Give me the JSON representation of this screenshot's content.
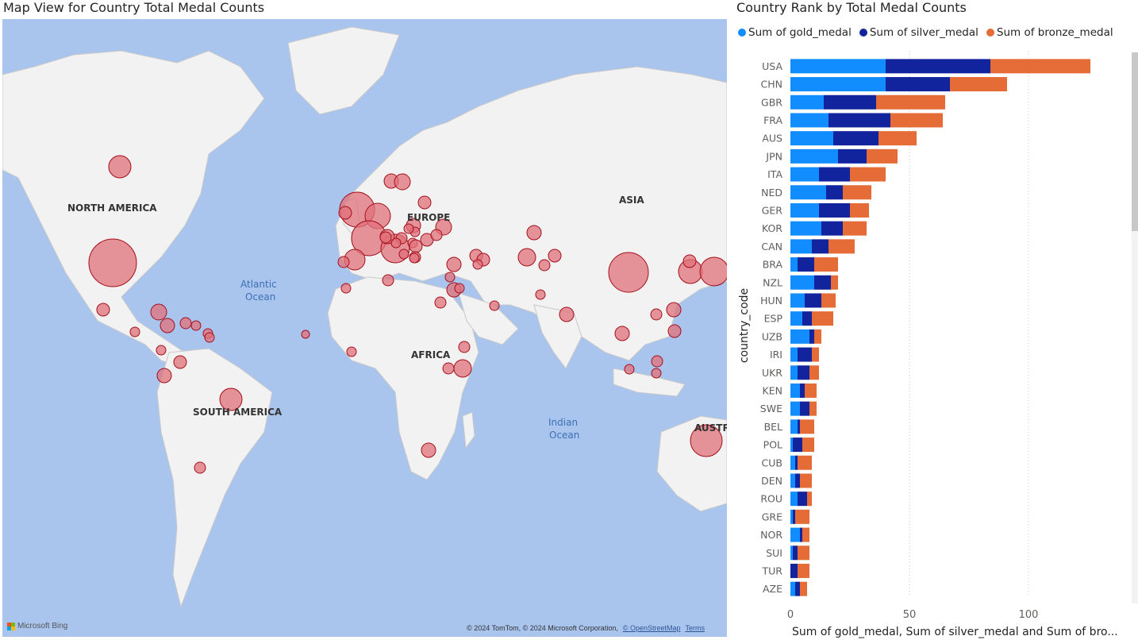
{
  "map_title": "Map View for Country Total Medal Counts",
  "bar_title": "Country Rank by Total Medal Counts",
  "map_labels": {
    "north_america": "NORTH AMERICA",
    "south_america": "SOUTH AMERICA",
    "europe": "EUROPE",
    "africa": "AFRICA",
    "asia": "ASIA",
    "australia": "AUSTR",
    "atlantic_1": "Atlantic",
    "atlantic_2": "Ocean",
    "indian_1": "Indian",
    "indian_2": "Ocean"
  },
  "bing_label": "Microsoft Bing",
  "attribution": "© 2024 TomTom, © 2024 Microsoft Corporation,",
  "attribution_link": "© OpenStreetMap",
  "terms_link": "Terms",
  "colors": {
    "gold": "#118dff",
    "silver": "#12239e",
    "bronze": "#e66c37",
    "bubble_fill": "#e0707a",
    "bubble_stroke": "#a3101c",
    "ocean": "#a9c5ee",
    "land": "#f2f2f2"
  },
  "chart_data": {
    "type": "bar",
    "orientation": "horizontal",
    "stacked": true,
    "title": "Country Rank by Total Medal Counts",
    "ylabel": "country_code",
    "xlabel": "Sum of gold_medal, Sum of silver_medal and Sum of bro...",
    "xlim": [
      0,
      140
    ],
    "xticks": [
      0,
      50,
      100
    ],
    "legend_position": "top",
    "categories": [
      "USA",
      "CHN",
      "GBR",
      "FRA",
      "AUS",
      "JPN",
      "ITA",
      "NED",
      "GER",
      "KOR",
      "CAN",
      "BRA",
      "NZL",
      "HUN",
      "ESP",
      "UZB",
      "IRI",
      "UKR",
      "KEN",
      "SWE",
      "BEL",
      "POL",
      "CUB",
      "DEN",
      "ROU",
      "GRE",
      "NOR",
      "SUI",
      "TUR",
      "AZE"
    ],
    "series": [
      {
        "name": "Sum of gold_medal",
        "values": [
          40,
          40,
          14,
          16,
          18,
          20,
          12,
          15,
          12,
          13,
          9,
          3,
          10,
          6,
          5,
          8,
          3,
          3,
          4,
          4,
          3,
          1,
          2,
          2,
          3,
          1,
          4,
          1,
          0,
          2
        ]
      },
      {
        "name": "Sum of silver_medal",
        "values": [
          44,
          27,
          22,
          26,
          19,
          12,
          13,
          7,
          13,
          9,
          7,
          7,
          7,
          7,
          4,
          2,
          6,
          5,
          2,
          4,
          1,
          4,
          1,
          2,
          4,
          1,
          1,
          2,
          3,
          2
        ]
      },
      {
        "name": "Sum of bronze_medal",
        "values": [
          42,
          24,
          29,
          22,
          16,
          13,
          15,
          12,
          8,
          10,
          11,
          10,
          3,
          6,
          9,
          3,
          3,
          4,
          5,
          3,
          6,
          5,
          6,
          5,
          2,
          6,
          3,
          5,
          5,
          3
        ]
      }
    ]
  }
}
